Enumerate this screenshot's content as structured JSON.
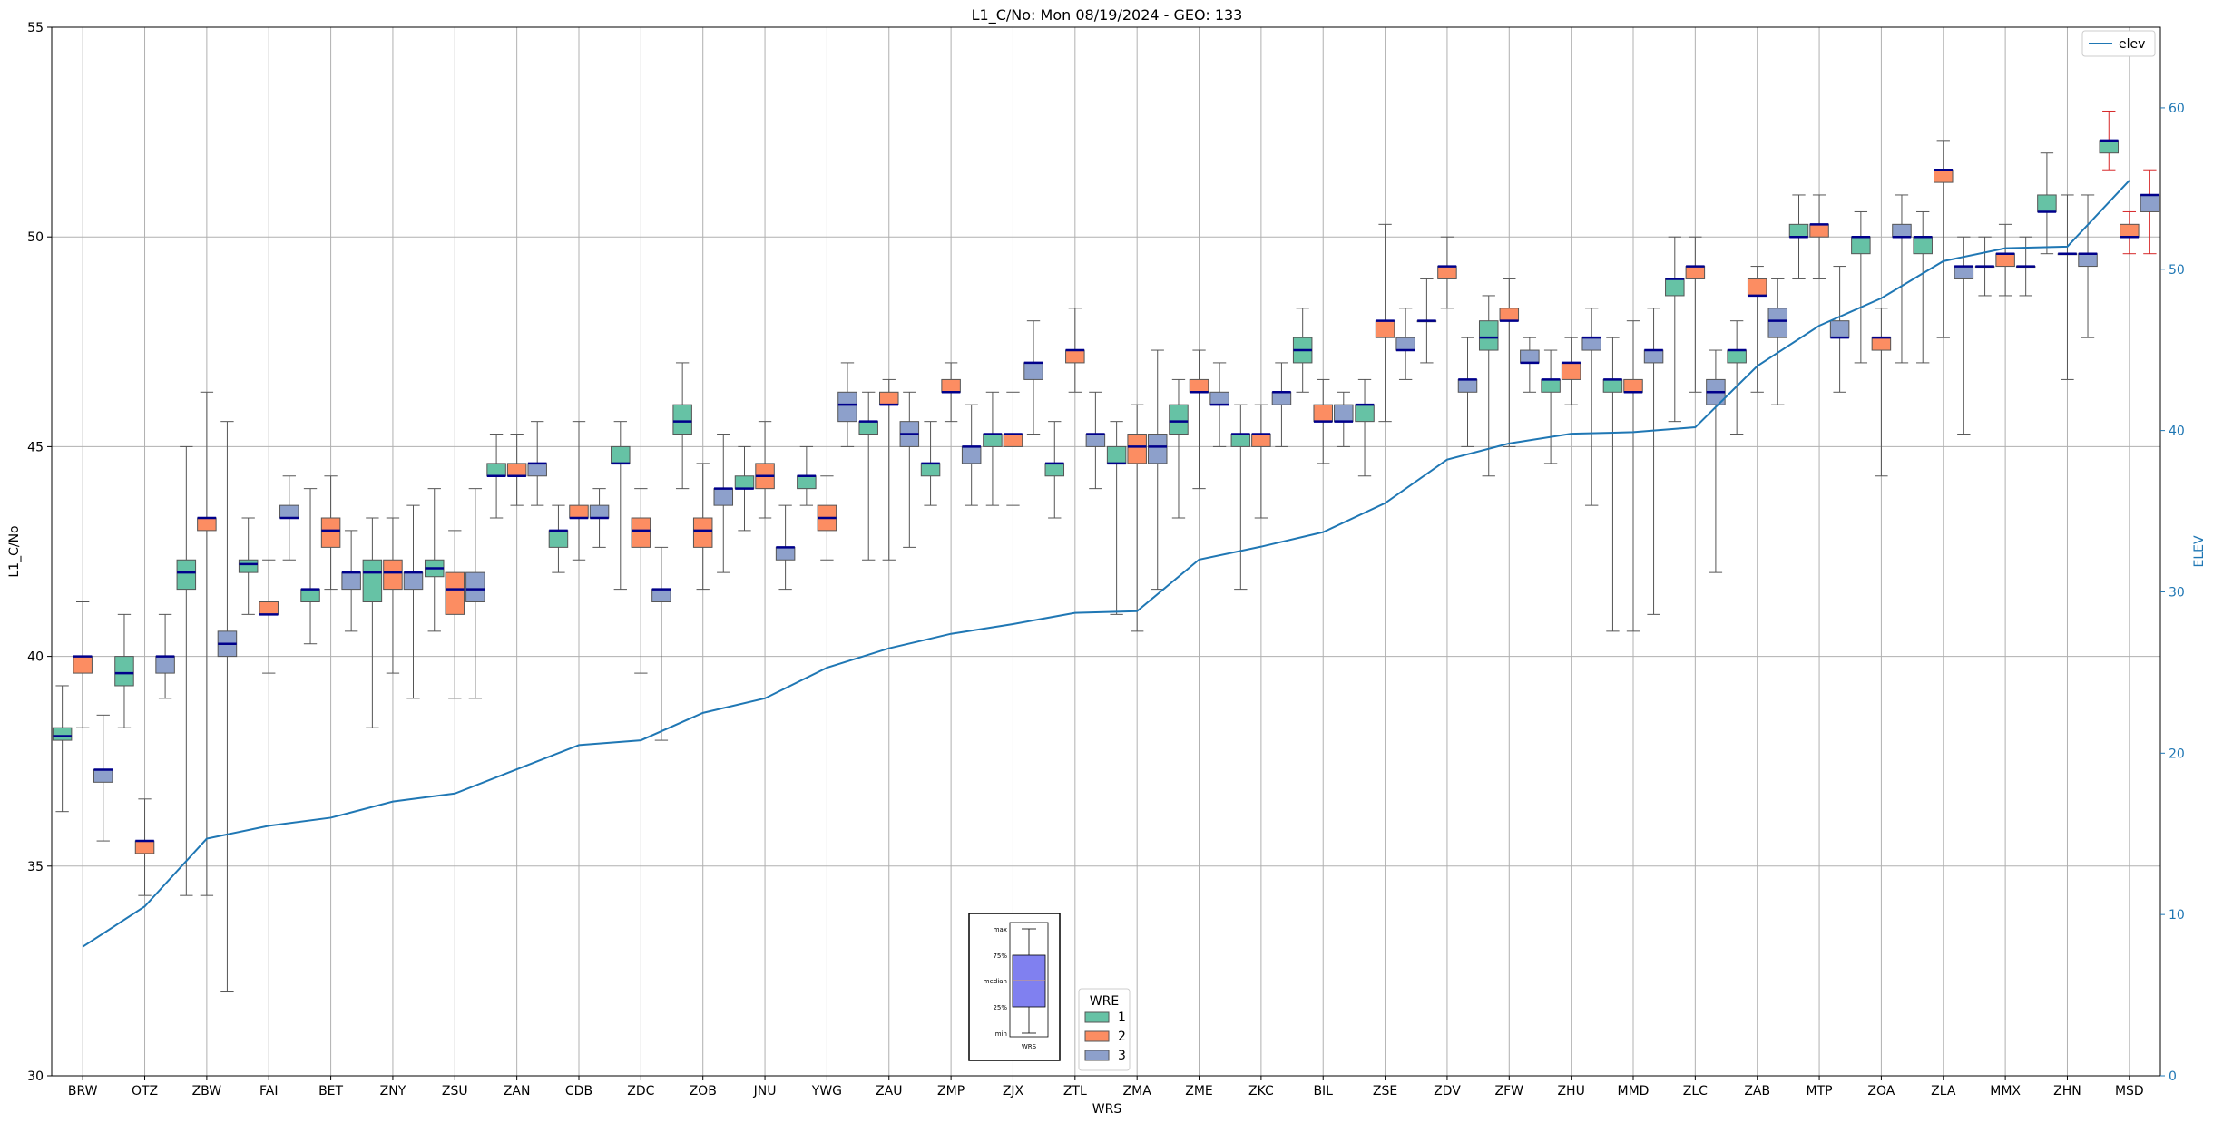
{
  "chart_data": {
    "type": "box",
    "title": "L1_C/No: Mon 08/19/2024 - GEO: 133",
    "xlabel": "WRS",
    "ylabel": "L1_C/No",
    "y2label": "ELEV",
    "ylim": [
      30,
      55
    ],
    "y2lim": [
      0,
      65
    ],
    "yticks": [
      30,
      35,
      40,
      45,
      50,
      55
    ],
    "y2ticks": [
      0,
      10,
      20,
      30,
      40,
      50,
      60
    ],
    "grid": true,
    "categories": [
      "BRW",
      "OTZ",
      "ZBW",
      "FAI",
      "BET",
      "ZNY",
      "ZSU",
      "ZAN",
      "CDB",
      "ZDC",
      "ZOB",
      "JNU",
      "YWG",
      "ZAU",
      "ZMP",
      "ZJX",
      "ZTL",
      "ZMA",
      "ZME",
      "ZKC",
      "BIL",
      "ZSE",
      "ZDV",
      "ZFW",
      "ZHU",
      "MMD",
      "ZLC",
      "ZAB",
      "MTP",
      "ZOA",
      "ZLA",
      "MMX",
      "ZHN",
      "MSD"
    ],
    "wre_colors": {
      "1": "#66c2a5",
      "2": "#fc8d62",
      "3": "#8da0cb"
    },
    "legend_wre": {
      "title": "WRE",
      "labels": [
        "1",
        "2",
        "3"
      ],
      "placement": "bottom-center"
    },
    "legend_line": {
      "label": "elev",
      "placement": "top-right"
    },
    "line_color": "#1f77b4",
    "elev": [
      8,
      10.5,
      14.7,
      15.5,
      16,
      17,
      17.5,
      19,
      20.5,
      20.8,
      22.5,
      23.4,
      25.3,
      26.5,
      27.4,
      28,
      28.7,
      28.8,
      32,
      32.8,
      33.7,
      35.5,
      38.2,
      39.2,
      39.8,
      39.9,
      40.2,
      44,
      46.5,
      48.2,
      50.5,
      51.3,
      51.4,
      55.5
    ],
    "series": [
      {
        "wre": "1",
        "boxes": [
          [
            0,
            36.3,
            38.0,
            38.1,
            38.3,
            39.3
          ],
          [
            1,
            38.3,
            39.3,
            39.6,
            40.0,
            41.0
          ],
          [
            2,
            34.3,
            41.6,
            42.0,
            42.3,
            45.0
          ],
          [
            3,
            41.0,
            42.0,
            42.2,
            42.3,
            43.3
          ],
          [
            4,
            40.3,
            41.3,
            41.6,
            41.6,
            44.0
          ],
          [
            5,
            38.3,
            41.3,
            42.0,
            42.3,
            43.3
          ],
          [
            6,
            40.6,
            41.9,
            42.1,
            42.3,
            44.0
          ],
          [
            7,
            43.3,
            44.3,
            44.3,
            44.6,
            45.3
          ],
          [
            8,
            42.0,
            42.6,
            43.0,
            43.0,
            43.6
          ],
          [
            9,
            41.6,
            44.6,
            44.6,
            45.0,
            45.6
          ],
          [
            10,
            44.0,
            45.3,
            45.6,
            46.0,
            47.0
          ],
          [
            11,
            43.0,
            44.0,
            44.0,
            44.3,
            45.0
          ],
          [
            12,
            43.6,
            44.0,
            44.3,
            44.3,
            45.0
          ],
          [
            13,
            42.3,
            45.3,
            45.6,
            45.6,
            46.3
          ],
          [
            14,
            43.6,
            44.3,
            44.6,
            44.6,
            45.6
          ],
          [
            15,
            43.6,
            45.0,
            45.3,
            45.3,
            46.3
          ],
          [
            16,
            43.3,
            44.3,
            44.6,
            44.6,
            45.6
          ],
          [
            17,
            41.0,
            44.6,
            44.6,
            45.0,
            45.6
          ],
          [
            18,
            43.3,
            45.3,
            45.6,
            46.0,
            46.6
          ],
          [
            19,
            41.6,
            45.0,
            45.3,
            45.3,
            46.0
          ],
          [
            20,
            46.3,
            47.0,
            47.3,
            47.6,
            48.3
          ],
          [
            21,
            44.3,
            45.6,
            46.0,
            46.0,
            46.6
          ],
          [
            22,
            47.0,
            48.0,
            48.0,
            48.0,
            49.0
          ],
          [
            23,
            44.3,
            47.3,
            47.6,
            48.0,
            48.6
          ],
          [
            24,
            44.6,
            46.3,
            46.6,
            46.6,
            47.3
          ],
          [
            25,
            40.6,
            46.3,
            46.6,
            46.6,
            47.6
          ],
          [
            26,
            45.6,
            48.6,
            49.0,
            49.0,
            50.0
          ],
          [
            27,
            45.3,
            47.0,
            47.3,
            47.3,
            48.0
          ],
          [
            28,
            49.0,
            50.0,
            50.0,
            50.3,
            51.0
          ],
          [
            29,
            47.0,
            49.6,
            50.0,
            50.0,
            50.6
          ],
          [
            30,
            47.0,
            49.6,
            50.0,
            50.0,
            50.6
          ],
          [
            31,
            48.6,
            49.3,
            49.3,
            49.3,
            50.0
          ],
          [
            32,
            49.6,
            50.6,
            50.6,
            51.0,
            52.0
          ],
          [
            33,
            51.6,
            52.0,
            52.3,
            52.3,
            53.0
          ]
        ]
      },
      {
        "wre": "2",
        "boxes": [
          [
            0,
            38.3,
            39.6,
            40.0,
            40.0,
            41.3
          ],
          [
            1,
            34.3,
            35.3,
            35.6,
            35.6,
            36.6
          ],
          [
            2,
            34.3,
            43.0,
            43.3,
            43.3,
            46.3
          ],
          [
            3,
            39.6,
            41.0,
            41.0,
            41.3,
            42.3
          ],
          [
            4,
            41.6,
            42.6,
            43.0,
            43.3,
            44.3
          ],
          [
            5,
            39.6,
            41.6,
            42.0,
            42.3,
            43.3
          ],
          [
            6,
            39.0,
            41.0,
            41.6,
            42.0,
            43.0
          ],
          [
            7,
            43.6,
            44.3,
            44.3,
            44.6,
            45.3
          ],
          [
            8,
            42.3,
            43.3,
            43.3,
            43.6,
            45.6
          ],
          [
            9,
            39.6,
            42.6,
            43.0,
            43.3,
            44.0
          ],
          [
            10,
            41.6,
            42.6,
            43.0,
            43.3,
            44.6
          ],
          [
            11,
            43.3,
            44.0,
            44.3,
            44.6,
            45.6
          ],
          [
            12,
            42.3,
            43.0,
            43.3,
            43.6,
            44.3
          ],
          [
            13,
            42.3,
            46.0,
            46.0,
            46.3,
            46.6
          ],
          [
            14,
            45.6,
            46.3,
            46.3,
            46.6,
            47.0
          ],
          [
            15,
            43.6,
            45.0,
            45.3,
            45.3,
            46.3
          ],
          [
            16,
            46.3,
            47.0,
            47.3,
            47.3,
            48.3
          ],
          [
            17,
            40.6,
            44.6,
            45.0,
            45.3,
            46.0
          ],
          [
            18,
            44.0,
            46.3,
            46.3,
            46.6,
            47.3
          ],
          [
            19,
            43.3,
            45.0,
            45.3,
            45.3,
            46.0
          ],
          [
            20,
            44.6,
            45.6,
            45.6,
            46.0,
            46.6
          ],
          [
            21,
            45.6,
            47.6,
            48.0,
            48.0,
            50.3
          ],
          [
            22,
            48.3,
            49.0,
            49.3,
            49.3,
            50.0
          ],
          [
            23,
            45.0,
            48.0,
            48.0,
            48.3,
            49.0
          ],
          [
            24,
            46.0,
            46.6,
            47.0,
            47.0,
            47.6
          ],
          [
            25,
            40.6,
            46.3,
            46.3,
            46.6,
            48.0
          ],
          [
            26,
            46.3,
            49.0,
            49.3,
            49.3,
            50.0
          ],
          [
            27,
            46.3,
            48.6,
            48.6,
            49.0,
            49.3
          ],
          [
            28,
            49.0,
            50.0,
            50.3,
            50.3,
            51.0
          ],
          [
            29,
            44.3,
            47.3,
            47.6,
            47.6,
            48.3
          ],
          [
            30,
            47.6,
            51.3,
            51.6,
            51.6,
            52.3
          ],
          [
            31,
            48.6,
            49.3,
            49.6,
            49.6,
            50.3
          ],
          [
            32,
            46.6,
            49.6,
            49.6,
            49.6,
            51.0
          ],
          [
            33,
            49.6,
            50.0,
            50.0,
            50.3,
            50.6
          ]
        ]
      },
      {
        "wre": "3",
        "boxes": [
          [
            0,
            35.6,
            37.0,
            37.3,
            37.3,
            38.6
          ],
          [
            1,
            39.0,
            39.6,
            40.0,
            40.0,
            41.0
          ],
          [
            2,
            32.0,
            40.0,
            40.3,
            40.6,
            45.6
          ],
          [
            3,
            42.3,
            43.3,
            43.3,
            43.6,
            44.3
          ],
          [
            4,
            40.6,
            41.6,
            42.0,
            42.0,
            43.0
          ],
          [
            5,
            39.0,
            41.6,
            42.0,
            42.0,
            43.6
          ],
          [
            6,
            39.0,
            41.3,
            41.6,
            42.0,
            44.0
          ],
          [
            7,
            43.6,
            44.3,
            44.6,
            44.6,
            45.6
          ],
          [
            8,
            42.6,
            43.3,
            43.3,
            43.6,
            44.0
          ],
          [
            9,
            38.0,
            41.3,
            41.6,
            41.6,
            42.6
          ],
          [
            10,
            42.0,
            43.6,
            44.0,
            44.0,
            45.3
          ],
          [
            11,
            41.6,
            42.3,
            42.6,
            42.6,
            43.6
          ],
          [
            12,
            45.0,
            45.6,
            46.0,
            46.3,
            47.0
          ],
          [
            13,
            42.6,
            45.0,
            45.3,
            45.6,
            46.3
          ],
          [
            14,
            43.6,
            44.6,
            45.0,
            45.0,
            46.0
          ],
          [
            15,
            45.3,
            46.6,
            47.0,
            47.0,
            48.0
          ],
          [
            16,
            44.0,
            45.0,
            45.3,
            45.3,
            46.3
          ],
          [
            17,
            41.6,
            44.6,
            45.0,
            45.3,
            47.3
          ],
          [
            18,
            45.0,
            46.0,
            46.0,
            46.3,
            47.0
          ],
          [
            19,
            45.0,
            46.0,
            46.3,
            46.3,
            47.0
          ],
          [
            20,
            45.0,
            45.6,
            45.6,
            46.0,
            46.3
          ],
          [
            21,
            46.6,
            47.3,
            47.3,
            47.6,
            48.3
          ],
          [
            22,
            45.0,
            46.3,
            46.6,
            46.6,
            47.6
          ],
          [
            23,
            46.3,
            47.0,
            47.0,
            47.3,
            47.6
          ],
          [
            24,
            43.6,
            47.3,
            47.6,
            47.6,
            48.3
          ],
          [
            25,
            41.0,
            47.0,
            47.3,
            47.3,
            48.3
          ],
          [
            26,
            42.0,
            46.0,
            46.3,
            46.6,
            47.3
          ],
          [
            27,
            46.0,
            47.6,
            48.0,
            48.3,
            49.0
          ],
          [
            28,
            46.3,
            47.6,
            47.6,
            48.0,
            49.3
          ],
          [
            29,
            47.0,
            50.0,
            50.0,
            50.3,
            51.0
          ],
          [
            30,
            45.3,
            49.0,
            49.3,
            49.3,
            50.0
          ],
          [
            31,
            48.6,
            49.3,
            49.3,
            49.3,
            50.0
          ],
          [
            32,
            47.6,
            49.3,
            49.6,
            49.6,
            51.0
          ],
          [
            33,
            49.6,
            50.6,
            51.0,
            51.0,
            51.6
          ]
        ]
      }
    ],
    "inset_legend": {
      "labels": [
        "max",
        "75%",
        "median",
        "25%",
        "min"
      ],
      "xlabel": "WRS",
      "box_color": "#8080f0",
      "median_color": "#d8a070"
    }
  }
}
